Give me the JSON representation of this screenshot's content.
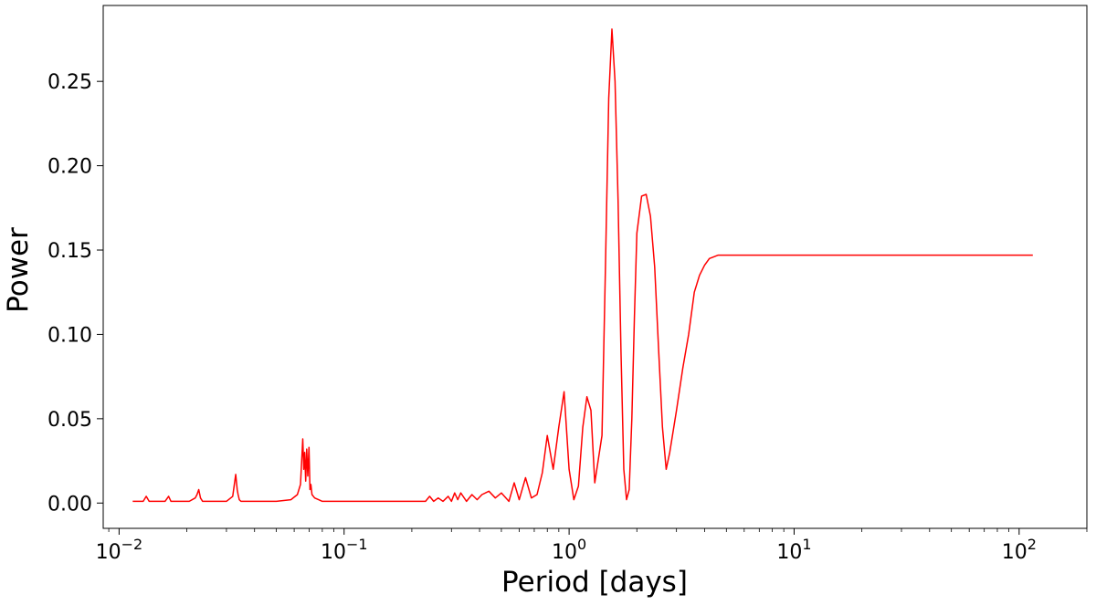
{
  "chart_data": {
    "type": "line",
    "title": "",
    "xlabel": "Period [days]",
    "ylabel": "Power",
    "x_scale": "log",
    "xlim": [
      0.0085,
      200
    ],
    "ylim": [
      -0.015,
      0.295
    ],
    "grid": false,
    "line_color": "#ff0000",
    "x_ticks": [
      {
        "value": 0.01,
        "base": "10",
        "exp": "−2"
      },
      {
        "value": 0.1,
        "base": "10",
        "exp": "−1"
      },
      {
        "value": 1,
        "base": "10",
        "exp": "0"
      },
      {
        "value": 10,
        "base": "10",
        "exp": "1"
      },
      {
        "value": 100,
        "base": "10",
        "exp": "2"
      }
    ],
    "y_ticks": [
      {
        "value": 0.0,
        "label": "0.00"
      },
      {
        "value": 0.05,
        "label": "0.05"
      },
      {
        "value": 0.1,
        "label": "0.10"
      },
      {
        "value": 0.15,
        "label": "0.15"
      },
      {
        "value": 0.2,
        "label": "0.20"
      },
      {
        "value": 0.25,
        "label": "0.25"
      }
    ],
    "series": [
      {
        "name": "",
        "x": [
          0.0115,
          0.0128,
          0.0132,
          0.0136,
          0.0145,
          0.016,
          0.0166,
          0.017,
          0.018,
          0.0205,
          0.0218,
          0.0222,
          0.0226,
          0.023,
          0.0235,
          0.0245,
          0.027,
          0.03,
          0.032,
          0.033,
          0.0335,
          0.0338,
          0.0342,
          0.0348,
          0.036,
          0.04,
          0.05,
          0.058,
          0.062,
          0.064,
          0.0655,
          0.0662,
          0.0668,
          0.0675,
          0.0682,
          0.069,
          0.0698,
          0.0705,
          0.0712,
          0.072,
          0.074,
          0.077,
          0.08,
          0.09,
          0.1,
          0.12,
          0.15,
          0.2,
          0.23,
          0.24,
          0.25,
          0.262,
          0.275,
          0.29,
          0.3,
          0.31,
          0.32,
          0.33,
          0.35,
          0.37,
          0.39,
          0.41,
          0.44,
          0.47,
          0.5,
          0.54,
          0.57,
          0.6,
          0.64,
          0.68,
          0.72,
          0.76,
          0.8,
          0.85,
          0.9,
          0.95,
          1.0,
          1.05,
          1.1,
          1.15,
          1.2,
          1.25,
          1.3,
          1.4,
          1.45,
          1.5,
          1.55,
          1.6,
          1.65,
          1.7,
          1.75,
          1.8,
          1.85,
          1.9,
          1.95,
          2.0,
          2.1,
          2.2,
          2.3,
          2.4,
          2.5,
          2.6,
          2.7,
          2.8,
          3.0,
          3.2,
          3.4,
          3.6,
          3.8,
          4.0,
          4.2,
          4.4,
          4.6,
          4.8,
          5.0,
          5.5,
          6.0,
          7.0,
          8.0,
          10.0,
          15.0,
          20.0,
          30.0,
          50.0,
          80.0,
          115.0
        ],
        "y": [
          0.001,
          0.001,
          0.004,
          0.001,
          0.001,
          0.001,
          0.004,
          0.001,
          0.001,
          0.001,
          0.003,
          0.005,
          0.008,
          0.003,
          0.001,
          0.001,
          0.001,
          0.001,
          0.004,
          0.017,
          0.008,
          0.005,
          0.002,
          0.001,
          0.001,
          0.001,
          0.001,
          0.002,
          0.005,
          0.011,
          0.038,
          0.02,
          0.03,
          0.013,
          0.032,
          0.016,
          0.033,
          0.008,
          0.011,
          0.005,
          0.003,
          0.002,
          0.001,
          0.001,
          0.001,
          0.001,
          0.001,
          0.001,
          0.001,
          0.004,
          0.001,
          0.003,
          0.001,
          0.004,
          0.001,
          0.006,
          0.002,
          0.006,
          0.001,
          0.005,
          0.002,
          0.005,
          0.007,
          0.003,
          0.006,
          0.001,
          0.012,
          0.002,
          0.015,
          0.003,
          0.005,
          0.018,
          0.04,
          0.02,
          0.045,
          0.066,
          0.02,
          0.002,
          0.01,
          0.045,
          0.063,
          0.055,
          0.012,
          0.04,
          0.14,
          0.24,
          0.281,
          0.25,
          0.18,
          0.09,
          0.02,
          0.002,
          0.008,
          0.05,
          0.11,
          0.16,
          0.182,
          0.183,
          0.17,
          0.14,
          0.09,
          0.045,
          0.02,
          0.03,
          0.055,
          0.08,
          0.1,
          0.125,
          0.135,
          0.141,
          0.145,
          0.146,
          0.147,
          0.147,
          0.147,
          0.147,
          0.147,
          0.147,
          0.147,
          0.147,
          0.147,
          0.147,
          0.147,
          0.147,
          0.147,
          0.147
        ]
      }
    ]
  }
}
